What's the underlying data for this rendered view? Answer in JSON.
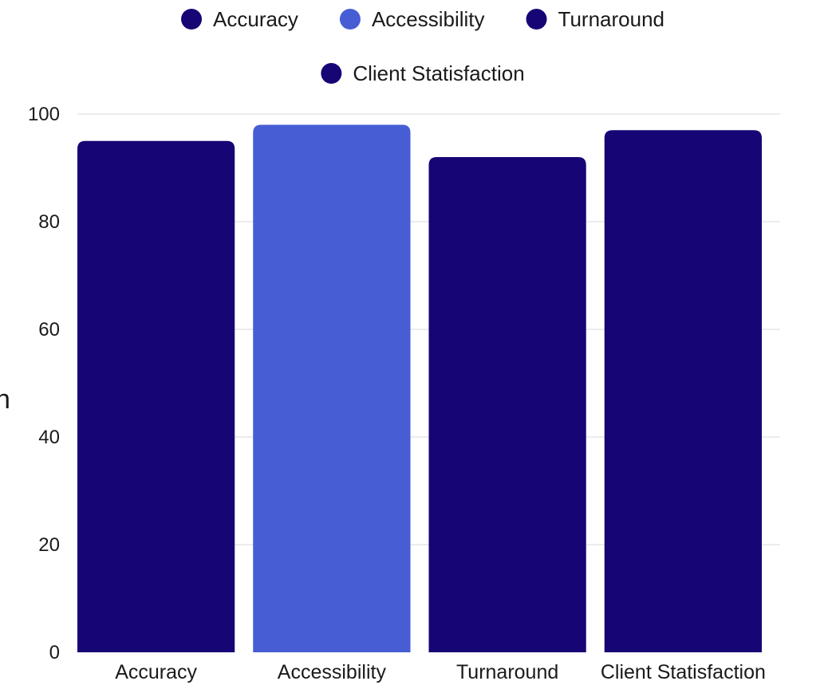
{
  "chart_data": {
    "type": "bar",
    "categories": [
      "Accuracy",
      "Accessibility",
      "Turnaround",
      "Client Statisfaction"
    ],
    "values": [
      95,
      98,
      92,
      97
    ],
    "colors": [
      "#160575",
      "#465dd3",
      "#160575",
      "#160575"
    ],
    "legend": [
      {
        "label": "Accuracy",
        "color": "#160575"
      },
      {
        "label": "Accessibility",
        "color": "#465dd3"
      },
      {
        "label": "Turnaround",
        "color": "#160575"
      },
      {
        "label": "Client Statisfaction",
        "color": "#160575"
      }
    ],
    "legend_position": "top",
    "yticks": [
      0,
      20,
      40,
      60,
      80,
      100
    ],
    "ylim": [
      0,
      100
    ],
    "grid": true,
    "ylabel_fragment": "n"
  }
}
